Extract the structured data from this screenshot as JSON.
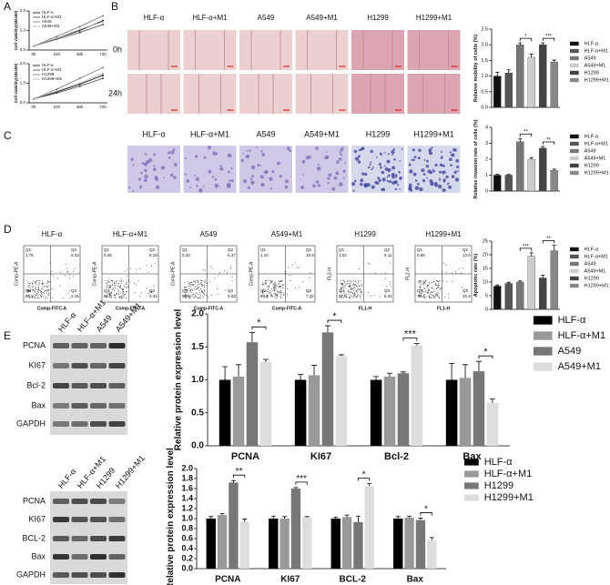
{
  "panel_labels": [
    "A",
    "B",
    "C",
    "D",
    "E"
  ],
  "micrographs_b": {
    "columns": [
      "HLF-α",
      "HLF-α+M1",
      "A549",
      "A549+M1",
      "H1299",
      "H1299+M1"
    ],
    "rows": [
      "0h",
      "24h"
    ]
  },
  "micrographs_c": {
    "columns": [
      "HLF-α",
      "HLF-α+M1",
      "A549",
      "A549+M1",
      "H1299",
      "H1299+M1"
    ]
  },
  "flow": [
    {
      "label": "HLF-α",
      "q1": "Q1",
      "q1v": "1.75",
      "q2": "Q2",
      "q2v": "6.33",
      "q3": "Q3",
      "q3v": "2.15",
      "q4": "Q4",
      "q4v": "89.8",
      "ylabel": "Comp-PE-A",
      "xlabel": "Comp-FITC-A"
    },
    {
      "label": "HLF-α+M1",
      "q1": "Q1",
      "q1v": "0.45",
      "q2": "Q2",
      "q2v": "6.19",
      "q3": "Q3",
      "q3v": "3.31",
      "q4": "Q4",
      "q4v": "90.0",
      "ylabel": "Comp-PE-A",
      "xlabel": "Comp-FITC-A"
    },
    {
      "label": "A549",
      "q1": "Q1",
      "q1v": "0.20",
      "q2": "Q2",
      "q2v": "6.37",
      "q3": "Q3",
      "q3v": "3.03",
      "q4": "Q4",
      "q4v": "90.4",
      "ylabel": "Comp-PE-A",
      "xlabel": "Comp-FITC-A"
    },
    {
      "label": "A549+M1",
      "q1": "Q1",
      "q1v": "1.10",
      "q2": "Q2",
      "q2v": "10.8",
      "q3": "Q3",
      "q3v": "7.32",
      "q4": "Q4",
      "q4v": "80.8",
      "ylabel": "Comp-PE-A",
      "xlabel": "Comp-FITC-A"
    },
    {
      "label": "H1299",
      "q1": "Q1",
      "q1v": "1.02",
      "q2": "Q2",
      "q2v": "6.11",
      "q3": "Q3",
      "q3v": "5.32",
      "q4": "Q4",
      "q4v": "87.6",
      "ylabel": "FL2-H",
      "xlabel": "FL1-H"
    },
    {
      "label": "H1299+M1",
      "q1": "Q1",
      "q1v": "0.86",
      "q2": "Q2",
      "q2v": "13.6",
      "q3": "Q3",
      "q3v": "10.4",
      "q4": "Q4",
      "q4v": "75.1",
      "ylabel": "FL2-H",
      "xlabel": "FL1-H"
    }
  ],
  "blots": [
    {
      "columns": [
        "HLF-α",
        "HLF-α+M1",
        "A549",
        "A549+M1"
      ],
      "rows": [
        "PCNA",
        "KI67",
        "Bcl-2",
        "Bax",
        "GAPDH"
      ]
    },
    {
      "columns": [
        "HLF-α",
        "HLF-α+M1",
        "H1299",
        "H1299+M1"
      ],
      "rows": [
        "PCNA",
        "KI67",
        "BCL-2",
        "Bax",
        "GAPDH"
      ]
    }
  ],
  "chart_data": [
    {
      "type": "line",
      "ylabel": "Cell viability(OD450)",
      "categories": [
        "0h",
        "24h",
        "48h",
        "72h"
      ],
      "ylim": [
        0,
        2
      ],
      "yticks": [
        {
          "value": 0,
          "label": "0.0"
        },
        {
          "value": 1,
          "label": "1.0"
        },
        {
          "value": 2,
          "label": "2.0"
        }
      ],
      "series": [
        {
          "name": "HLF-α",
          "color": "#000000",
          "values": [
            0.2,
            0.6,
            1.0,
            1.5
          ]
        },
        {
          "name": "HLF-α+M1",
          "color": "#444444",
          "values": [
            0.2,
            0.55,
            0.9,
            1.3
          ]
        },
        {
          "name": "A549",
          "color": "#777777",
          "values": [
            0.2,
            0.7,
            1.2,
            1.75
          ]
        },
        {
          "name": "A549+M1",
          "color": "#aaaaaa",
          "values": [
            0.2,
            0.6,
            1.05,
            1.45
          ]
        }
      ]
    },
    {
      "type": "line",
      "ylabel": "Cell viability(OD450)",
      "categories": [
        "0h",
        "24h",
        "48h",
        "72h"
      ],
      "ylim": [
        0,
        2
      ],
      "yticks": [
        {
          "value": 0,
          "label": "0.0"
        },
        {
          "value": 1,
          "label": "1.0"
        },
        {
          "value": 2,
          "label": "2.0"
        }
      ],
      "series": [
        {
          "name": "HLF-α",
          "color": "#000000",
          "values": [
            0.2,
            0.55,
            0.95,
            1.4
          ]
        },
        {
          "name": "HLF-α+M1",
          "color": "#444444",
          "values": [
            0.2,
            0.5,
            0.85,
            1.25
          ]
        },
        {
          "name": "H1299",
          "color": "#777777",
          "values": [
            0.2,
            0.7,
            1.25,
            1.8
          ]
        },
        {
          "name": "H1299+M1",
          "color": "#aaaaaa",
          "values": [
            0.2,
            0.6,
            1.0,
            1.5
          ]
        }
      ]
    },
    {
      "type": "bar",
      "ylabel": "Relative mobility of cells (%)",
      "categories": [
        "HLF-α",
        "HLF-α+M1",
        "A549",
        "A549+M1",
        "H1299",
        "H1299+M1"
      ],
      "values": [
        1.0,
        1.1,
        2.0,
        1.6,
        2.0,
        1.45
      ],
      "errors": [
        0.12,
        0.1,
        0.06,
        0.1,
        0.06,
        0.06
      ],
      "colors": [
        "#111111",
        "#555555",
        "#777777",
        "#cccccc",
        "#444444",
        "#888888"
      ],
      "ylim": [
        0,
        2.5
      ],
      "yticks": [
        {
          "value": 0,
          "label": "0.0"
        },
        0.5,
        {
          "value": 1,
          "label": "1.0"
        },
        1.5,
        {
          "value": 2,
          "label": "2.0"
        },
        2.5
      ],
      "significance": [
        "*",
        "***"
      ]
    },
    {
      "type": "bar",
      "ylabel": "Relative invasion rate of cells (%)",
      "categories": [
        "HLF-α",
        "HLF-α+M1",
        "A549",
        "A549+M1",
        "H1299",
        "H1299+M1"
      ],
      "values": [
        1.0,
        1.0,
        3.1,
        2.0,
        2.7,
        1.3
      ],
      "errors": [
        0.05,
        0.04,
        0.2,
        0.1,
        0.1,
        0.08
      ],
      "colors": [
        "#111111",
        "#555555",
        "#777777",
        "#cccccc",
        "#444444",
        "#888888"
      ],
      "ylim": [
        0,
        4
      ],
      "yticks": [
        0,
        1,
        2,
        3,
        4
      ],
      "significance": [
        "**",
        "**"
      ]
    },
    {
      "type": "bar",
      "ylabel": "Apoptotic rate (%)",
      "categories": [
        "HLF-α",
        "HLF-α+M1",
        "A549",
        "A549+M1",
        "H1299",
        "H1299+M1"
      ],
      "values": [
        8.5,
        9.5,
        10,
        19.5,
        11.5,
        21.5
      ],
      "errors": [
        0.4,
        0.4,
        0.4,
        1.2,
        1.0,
        2.0
      ],
      "colors": [
        "#111111",
        "#555555",
        "#777777",
        "#cccccc",
        "#444444",
        "#888888"
      ],
      "ylim": [
        0,
        25
      ],
      "yticks": [
        0,
        5,
        10,
        15,
        20,
        25
      ],
      "significance": [
        "***",
        "**"
      ]
    },
    {
      "type": "grouped_bar",
      "ylabel": "Relative protein expression  level",
      "categories": [
        "PCNA",
        "KI67",
        "Bcl-2",
        "Bax"
      ],
      "ylim": [
        0,
        2
      ],
      "yticks": [
        {
          "value": 0,
          "label": "0.0"
        },
        0.5,
        {
          "value": 1,
          "label": "1.0"
        },
        1.5,
        {
          "value": 2,
          "label": "2.0"
        }
      ],
      "series": [
        {
          "name": "HLF-α",
          "color": "#000000",
          "values": [
            1.0,
            1.0,
            1.0,
            1.0
          ],
          "errors": [
            0.2,
            0.08,
            0.05,
            0.25
          ]
        },
        {
          "name": "HLF-α+M1",
          "color": "#999999",
          "values": [
            1.05,
            1.07,
            1.05,
            1.03
          ],
          "errors": [
            0.18,
            0.15,
            0.05,
            0.2
          ]
        },
        {
          "name": "A549",
          "color": "#777777",
          "values": [
            1.57,
            1.72,
            1.1,
            1.13
          ],
          "errors": [
            0.15,
            0.1,
            0.02,
            0.15
          ]
        },
        {
          "name": "A549+M1",
          "color": "#dddddd",
          "values": [
            1.27,
            1.36,
            1.52,
            0.65
          ],
          "errors": [
            0.04,
            0.02,
            0.03,
            0.06
          ]
        }
      ],
      "significance": [
        "*",
        "*",
        "***",
        "*"
      ]
    },
    {
      "type": "grouped_bar",
      "ylabel": "Relative protein expression  level",
      "categories": [
        "PCNA",
        "KI67",
        "BCL-2",
        "Bax"
      ],
      "ylim": [
        0,
        2
      ],
      "yticks": [
        {
          "value": 0,
          "label": "0.0"
        },
        0.2,
        0.4,
        0.6,
        0.8,
        {
          "value": 1,
          "label": "1.0"
        },
        1.2,
        1.4,
        1.6,
        1.8,
        {
          "value": 2,
          "label": "2.0"
        }
      ],
      "series": [
        {
          "name": "HLF-α",
          "color": "#000000",
          "values": [
            1.0,
            1.0,
            1.0,
            1.0
          ],
          "errors": [
            0.04,
            0.05,
            0.03,
            0.04
          ]
        },
        {
          "name": "HLF-α+M1",
          "color": "#999999",
          "values": [
            1.07,
            1.0,
            1.03,
            1.02
          ],
          "errors": [
            0.03,
            0.04,
            0.04,
            0.03
          ]
        },
        {
          "name": "H1299",
          "color": "#777777",
          "values": [
            1.72,
            1.6,
            0.93,
            0.97
          ],
          "errors": [
            0.04,
            0.02,
            0.12,
            0.04
          ]
        },
        {
          "name": "H1299+M1",
          "color": "#dddddd",
          "values": [
            0.93,
            1.03,
            1.65,
            0.57
          ],
          "errors": [
            0.06,
            0.01,
            0.05,
            0.05
          ]
        }
      ],
      "significance": [
        "**",
        "***",
        "*",
        "*"
      ]
    }
  ]
}
